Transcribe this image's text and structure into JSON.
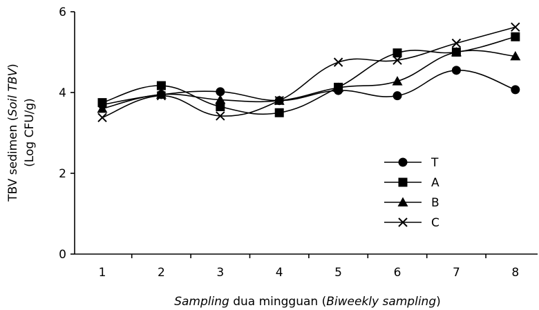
{
  "chart_data": {
    "type": "line",
    "x": [
      1,
      2,
      3,
      4,
      5,
      6,
      7,
      8
    ],
    "ylim": [
      0,
      6
    ],
    "yticks": [
      0,
      2,
      4,
      6
    ],
    "xlabel": {
      "normal1": "Sampling",
      "normal2": " dua mingguan (",
      "italic2": "Biweekly sampling",
      "normal3": ")"
    },
    "ylabel": {
      "line1_pre": "TBV sedimen (",
      "line1_italic": "Soil TBV",
      "line1_post": ")",
      "line2": "(Log CFU/g)"
    },
    "legend_position": "right",
    "series": [
      {
        "name": "T",
        "marker": "circle",
        "values": [
          3.7,
          3.95,
          4.02,
          3.8,
          4.05,
          3.92,
          4.55,
          4.07
        ]
      },
      {
        "name": "A",
        "marker": "square",
        "values": [
          3.75,
          4.17,
          3.65,
          3.5,
          4.13,
          4.98,
          5.0,
          5.38
        ]
      },
      {
        "name": "B",
        "marker": "triangle",
        "values": [
          3.6,
          3.95,
          3.82,
          3.8,
          4.12,
          4.28,
          5.0,
          4.9
        ]
      },
      {
        "name": "C",
        "marker": "x",
        "values": [
          3.38,
          3.92,
          3.42,
          3.8,
          4.75,
          4.8,
          5.22,
          5.62
        ]
      }
    ]
  }
}
